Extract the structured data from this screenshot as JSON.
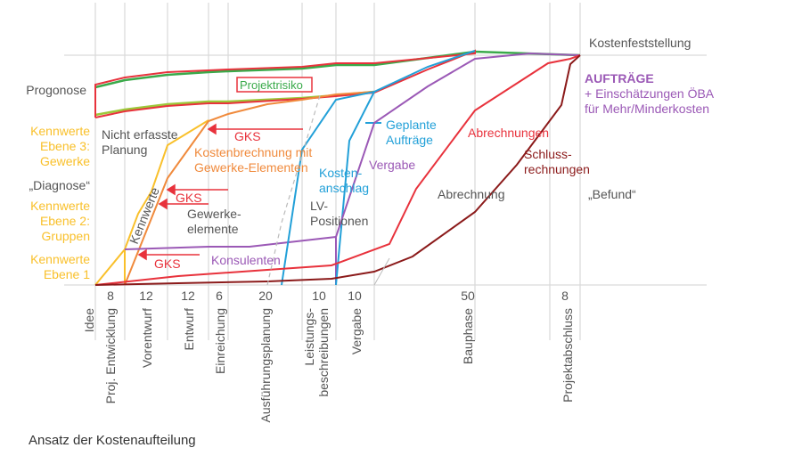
{
  "caption": "Ansatz der Kostenaufteilung",
  "colors": {
    "grid": "#d9d9d9",
    "text_grey": "#555555",
    "kennwerte_yellow": "#f9c02b",
    "kostenberechnung_orange": "#f08a3c",
    "gks_red": "#e8323c",
    "prognose_green": "#3aaa4a",
    "prognose_lightgreen": "#9cc83a",
    "kostenanschlag_blue": "#22a0d8",
    "vergabe_purple": "#9b59b6",
    "abrechnung_darkred": "#8b1a1a",
    "dashed": "#bbbbbb"
  },
  "left_labels": {
    "prognose": "Progonose",
    "ebene3": [
      "Kennwerte",
      "Ebene 3:",
      "Gewerke"
    ],
    "diagnose": "„Diagnose“",
    "ebene2": [
      "Kennwerte",
      "Ebene 2:",
      "Gruppen"
    ],
    "ebene1": [
      "Kennwerte",
      "Ebene 1"
    ]
  },
  "annotations": {
    "projektrisiko": "Projektrisiko",
    "nicht_erfasste": [
      "Nicht erfasste",
      "Planung"
    ],
    "gks": "GKS",
    "kostenberechnung": [
      "Kostenbrechnung mit",
      "Gewerke-Elementen"
    ],
    "kennwerte_rot": "Kennwerte",
    "gewerkeelemente": [
      "Gewerke-",
      "elemente"
    ],
    "konsulenten": "Konsulenten",
    "kostenanschlag": [
      "Kosten-",
      "anschlag"
    ],
    "lv_positionen": [
      "LV-",
      "Positionen"
    ],
    "geplante_auftraege": [
      "Geplante",
      "Aufträge"
    ],
    "vergabe": "Vergabe",
    "abrechnungen": "Abrechnungen",
    "abrechnung": "Abrechnung",
    "schlussrechnungen": [
      "Schluss-",
      "rechnungen"
    ],
    "kostenfeststellung": "Kostenfeststellung",
    "auftraege_title": "AUFTRÄGE",
    "auftraege_sub": [
      "+ Einschätzungen ÖBA",
      "für Mehr/Minderkosten"
    ],
    "befund": "„Befund“"
  },
  "phases": [
    {
      "label": "Idee",
      "duration": ""
    },
    {
      "label": "Proj. Entwicklung",
      "duration": "8"
    },
    {
      "label": "Vorentwurf",
      "duration": "12"
    },
    {
      "label": "Entwurf",
      "duration": "12"
    },
    {
      "label": "Einreichung",
      "duration": "6"
    },
    {
      "label": "Ausführungsplanung",
      "duration": "20"
    },
    {
      "label": "Leistungs-|beschreibungen",
      "duration": "10"
    },
    {
      "label": "Vergabe",
      "duration": "10"
    },
    {
      "label": "Bauphase",
      "duration": "50"
    },
    {
      "label": "Projektabschluss",
      "duration": "8"
    }
  ]
}
